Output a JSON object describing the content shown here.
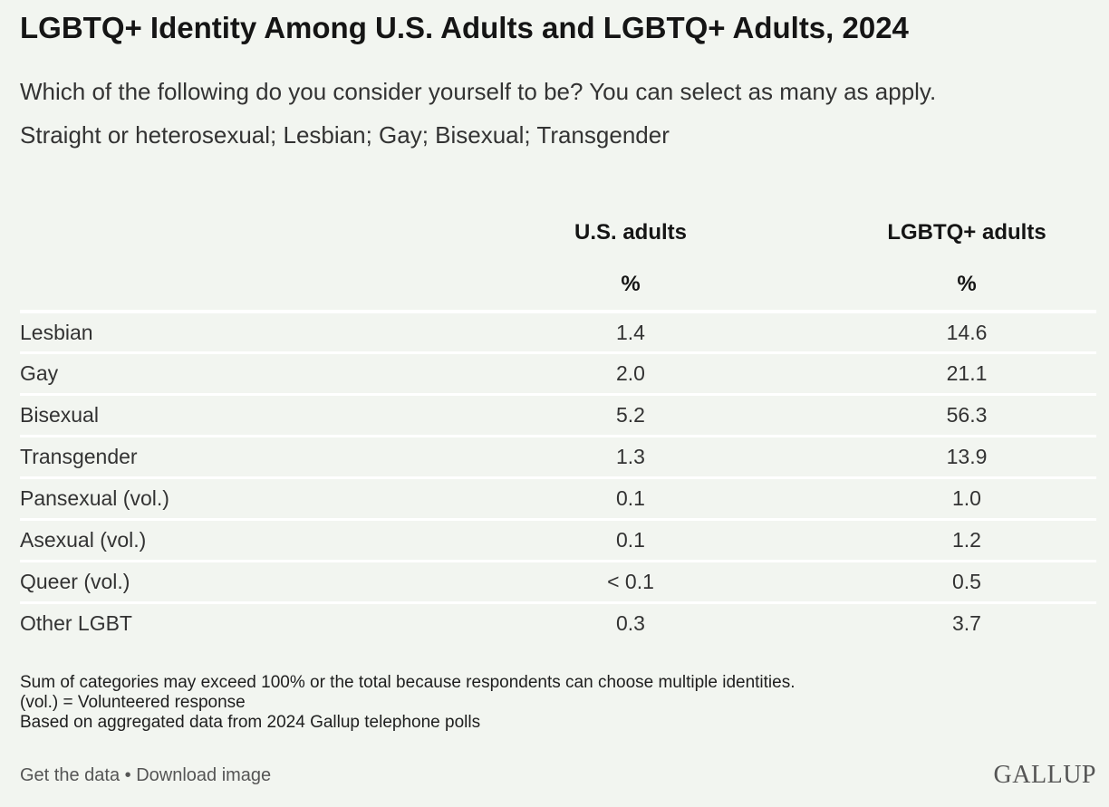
{
  "title": "LGBTQ+ Identity Among U.S. Adults and LGBTQ+ Adults, 2024",
  "subtitle_line1": "Which of the following do you consider yourself to be? You can select as many as apply.",
  "subtitle_line2": "Straight or heterosexual; Lesbian; Gay; Bisexual; Transgender",
  "columns": [
    {
      "name": "U.S. adults",
      "unit": "%"
    },
    {
      "name": "LGBTQ+ adults",
      "unit": "%"
    }
  ],
  "chart_data": {
    "type": "table",
    "title": "LGBTQ+ Identity Among U.S. Adults and LGBTQ+ Adults, 2024",
    "columns": [
      "U.S. adults",
      "LGBTQ+ adults"
    ],
    "rows": [
      {
        "label": "Lesbian",
        "us": "1.4",
        "lgbtq": "14.6"
      },
      {
        "label": "Gay",
        "us": "2.0",
        "lgbtq": "21.1"
      },
      {
        "label": "Bisexual",
        "us": "5.2",
        "lgbtq": "56.3"
      },
      {
        "label": "Transgender",
        "us": "1.3",
        "lgbtq": "13.9"
      },
      {
        "label": "Pansexual (vol.)",
        "us": "0.1",
        "lgbtq": "1.0"
      },
      {
        "label": "Asexual (vol.)",
        "us": "0.1",
        "lgbtq": "1.2"
      },
      {
        "label": "Queer (vol.)",
        "us": "< 0.1",
        "lgbtq": "0.5"
      },
      {
        "label": "Other LGBT",
        "us": "0.3",
        "lgbtq": "3.7"
      }
    ]
  },
  "notes": [
    "Sum of categories may exceed 100% or the total because respondents can choose multiple identities.",
    "(vol.) = Volunteered response",
    "Based on aggregated data from 2024 Gallup telephone polls"
  ],
  "footer": {
    "get_data": "Get the data",
    "separator": " • ",
    "download": "Download image"
  },
  "logo": "GALLUP"
}
